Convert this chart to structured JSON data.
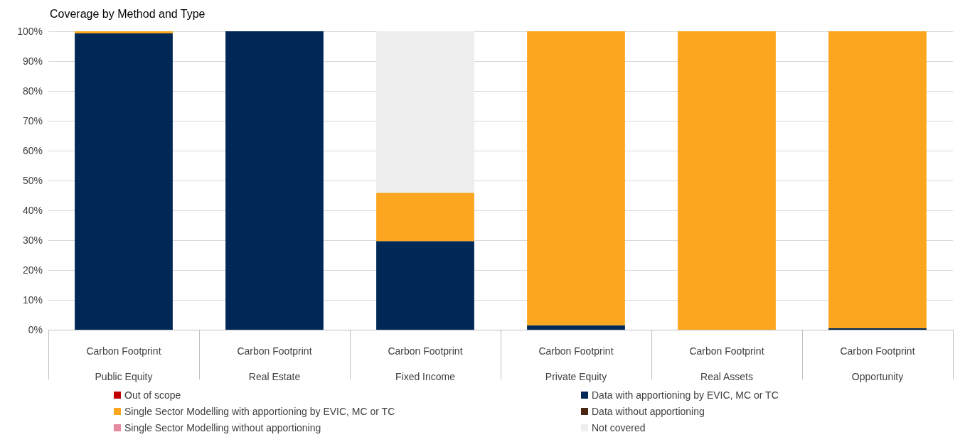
{
  "chart_data": {
    "type": "bar",
    "title": "Coverage by Method and Type",
    "stacked": true,
    "grid": "y",
    "legend": "bottom",
    "categories": [
      "Carbon Footprint\nPublic Equity",
      "Carbon Footprint\nReal Estate",
      "Carbon Footprint\nFixed Income",
      "Carbon Footprint\nPrivate Equity",
      "Carbon Footprint\nReal Assets",
      "Carbon Footprint\nOpportunity"
    ],
    "ylim": [
      0,
      100
    ],
    "yticks": [
      {
        "value": 0,
        "label": "0%"
      },
      {
        "value": 10,
        "label": "10%"
      },
      {
        "value": 20,
        "label": "20%"
      },
      {
        "value": 30,
        "label": "30%"
      },
      {
        "value": 40,
        "label": "40%"
      },
      {
        "value": 50,
        "label": "50%"
      },
      {
        "value": 60,
        "label": "60%"
      },
      {
        "value": 70,
        "label": "70%"
      },
      {
        "value": 80,
        "label": "80%"
      },
      {
        "value": 90,
        "label": "90%"
      },
      {
        "value": 100,
        "label": "100%"
      }
    ],
    "series": [
      {
        "name": "Out of scope",
        "color": "#c00000",
        "values": [
          0,
          0,
          0,
          0,
          0,
          0
        ]
      },
      {
        "name": "Data with apportioning by EVIC, MC or TC",
        "color": "#002856",
        "values": [
          99.3,
          100,
          29.7,
          1.5,
          0,
          0.5
        ]
      },
      {
        "name": "Single Sector Modelling with apportioning by EVIC, MC or TC",
        "color": "#fca61f",
        "values": [
          0.7,
          0,
          16.2,
          98.5,
          100,
          99.5
        ]
      },
      {
        "name": "Data without apportioning",
        "color": "#4a2511",
        "values": [
          0,
          0,
          0,
          0,
          0,
          0
        ]
      },
      {
        "name": "Single Sector Modelling without apportioning",
        "color": "#e68aa0",
        "values": [
          0,
          0,
          0,
          0,
          0,
          0
        ]
      },
      {
        "name": "Not covered",
        "color": "#eeeeee",
        "values": [
          0,
          0,
          54.1,
          0,
          0,
          0
        ]
      }
    ]
  }
}
